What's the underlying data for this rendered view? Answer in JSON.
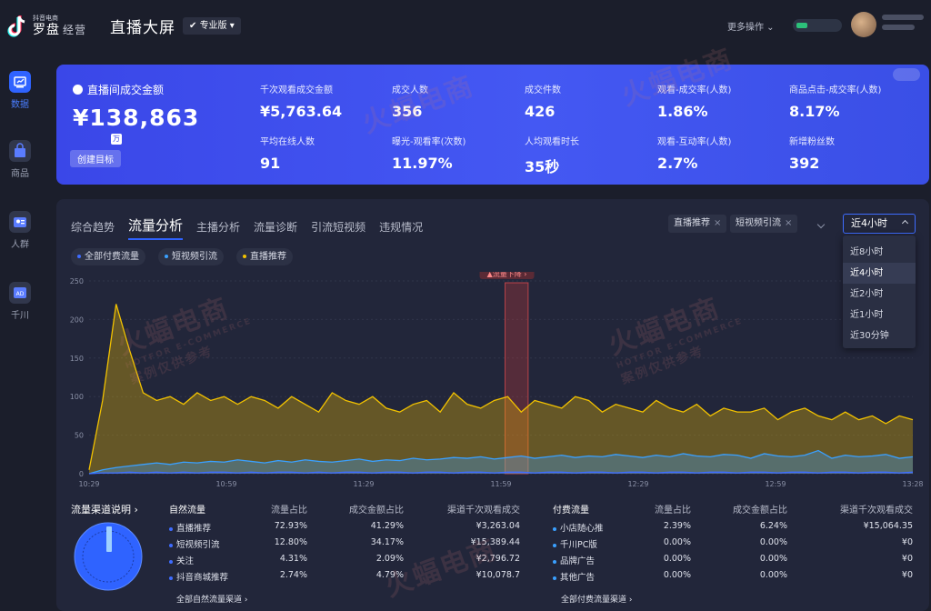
{
  "header": {
    "logo_small": "抖音电商",
    "logo_main": "罗盘",
    "logo_suffix": "经营",
    "title": "直播大屏",
    "edition": "专业版",
    "more_ops": "更多操作"
  },
  "sidebar": {
    "items": [
      {
        "label": "数据",
        "icon": "chart-icon",
        "active": true
      },
      {
        "label": "商品",
        "icon": "shopping-bag-icon",
        "active": false
      },
      {
        "label": "人群",
        "icon": "user-card-icon",
        "active": false
      },
      {
        "label": "千川",
        "icon": "ad-icon",
        "active": false
      }
    ]
  },
  "hero": {
    "main_label": "直播间成交金额",
    "main_value": "¥138,863",
    "unit": "万",
    "goal_button": "创建目标",
    "kpis": [
      {
        "label": "千次观看成交金额",
        "value": "¥5,763.64"
      },
      {
        "label": "成交人数",
        "value": "356"
      },
      {
        "label": "成交件数",
        "value": "426"
      },
      {
        "label": "观看-成交率(人数)",
        "value": "1.86%"
      },
      {
        "label": "商品点击-成交率(人数)",
        "value": "8.17%"
      },
      {
        "label": "平均在线人数",
        "value": "91"
      },
      {
        "label": "曝光-观看率(次数)",
        "value": "11.97%"
      },
      {
        "label": "人均观看时长",
        "value": "35秒"
      },
      {
        "label": "观看-互动率(人数)",
        "value": "2.7%"
      },
      {
        "label": "新增粉丝数",
        "value": "392"
      }
    ]
  },
  "tabs": [
    "综合趋势",
    "流量分析",
    "主播分析",
    "流量诊断",
    "引流短视频",
    "违规情况"
  ],
  "active_tab": "流量分析",
  "filters": {
    "tags": [
      "直播推荐",
      "短视频引流"
    ],
    "time_selected": "近4小时",
    "time_options": [
      "近8小时",
      "近4小时",
      "近2小时",
      "近1小时",
      "近30分钟"
    ]
  },
  "legend_pills": [
    {
      "label": "全部付费流量",
      "color": "#3e6cff"
    },
    {
      "label": "短视频引流",
      "color": "#3aa0ff"
    },
    {
      "label": "直播推荐",
      "color": "#f2c200"
    }
  ],
  "annotation": "流量下降",
  "chart_data": {
    "type": "area",
    "x_ticks": [
      "10:29",
      "10:59",
      "11:29",
      "11:59",
      "12:29",
      "12:59",
      "13:28"
    ],
    "y_ticks": [
      0,
      50,
      100,
      150,
      200,
      250
    ],
    "ylim": [
      0,
      250
    ],
    "series": [
      {
        "name": "直播推荐",
        "color": "#f2c200",
        "values": [
          5,
          95,
          220,
          160,
          105,
          95,
          100,
          90,
          105,
          95,
          100,
          90,
          100,
          95,
          85,
          100,
          90,
          80,
          105,
          95,
          90,
          100,
          85,
          80,
          90,
          95,
          80,
          105,
          90,
          85,
          95,
          100,
          80,
          95,
          90,
          85,
          100,
          95,
          80,
          90,
          85,
          80,
          95,
          85,
          80,
          90,
          75,
          85,
          80,
          80,
          85,
          70,
          80,
          85,
          75,
          70,
          80,
          70,
          75,
          65,
          75,
          70
        ]
      },
      {
        "name": "短视频引流",
        "color": "#3aa0ff",
        "values": [
          0,
          5,
          8,
          10,
          12,
          14,
          12,
          15,
          14,
          16,
          15,
          18,
          16,
          14,
          17,
          15,
          18,
          16,
          15,
          17,
          19,
          16,
          18,
          17,
          20,
          18,
          19,
          21,
          20,
          22,
          19,
          21,
          23,
          20,
          22,
          24,
          21,
          23,
          22,
          25,
          23,
          21,
          24,
          22,
          26,
          23,
          22,
          25,
          24,
          20,
          26,
          23,
          22,
          24,
          30,
          20,
          24,
          22,
          23,
          25,
          20,
          22
        ]
      },
      {
        "name": "全部付费流量",
        "color": "#3e6cff",
        "values": [
          0,
          1,
          1,
          2,
          1,
          2,
          1,
          2,
          1,
          2,
          2,
          1,
          2,
          1,
          2,
          2,
          1,
          2,
          1,
          2,
          2,
          1,
          2,
          2,
          1,
          2,
          2,
          1,
          2,
          2,
          1,
          2,
          2,
          1,
          2,
          2,
          1,
          2,
          2,
          1,
          2,
          2,
          1,
          2,
          2,
          1,
          2,
          2,
          1,
          2,
          2,
          1,
          2,
          2,
          1,
          2,
          2,
          1,
          2,
          2,
          1,
          2
        ]
      }
    ]
  },
  "channels": {
    "title": "流量渠道说明",
    "natural": {
      "header": [
        "自然流量",
        "流量占比",
        "成交金额占比",
        "渠道千次观看成交"
      ],
      "rows": [
        [
          "直播推荐",
          "72.93%",
          "41.29%",
          "¥3,263.04"
        ],
        [
          "短视频引流",
          "12.80%",
          "34.17%",
          "¥15,389.44"
        ],
        [
          "关注",
          "4.31%",
          "2.09%",
          "¥2,796.72"
        ],
        [
          "抖音商城推荐",
          "2.74%",
          "4.79%",
          "¥10,078.7"
        ]
      ],
      "more": "全部自然流量渠道"
    },
    "paid": {
      "header": [
        "付费流量",
        "流量占比",
        "成交金额占比",
        "渠道千次观看成交"
      ],
      "rows": [
        [
          "小店随心推",
          "2.39%",
          "6.24%",
          "¥15,064.35"
        ],
        [
          "千川PC版",
          "0.00%",
          "0.00%",
          "¥0"
        ],
        [
          "品牌广告",
          "0.00%",
          "0.00%",
          "¥0"
        ],
        [
          "其他广告",
          "0.00%",
          "0.00%",
          "¥0"
        ]
      ],
      "more": "全部付费流量渠道"
    }
  },
  "watermark": {
    "cn": "火蝠电商",
    "en": "HOTFOR E-COMMERCE",
    "note": "案例仅供参考"
  }
}
